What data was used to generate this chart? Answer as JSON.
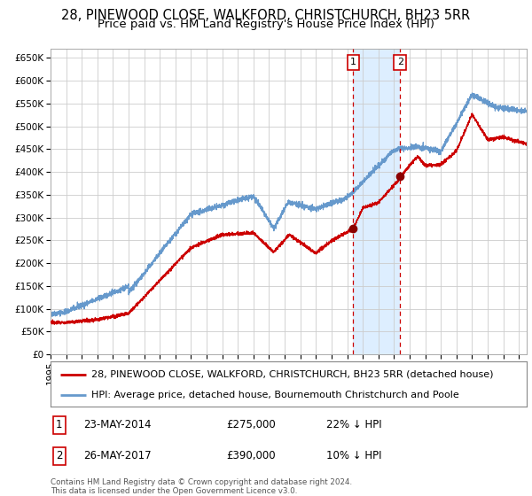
{
  "title": "28, PINEWOOD CLOSE, WALKFORD, CHRISTCHURCH, BH23 5RR",
  "subtitle": "Price paid vs. HM Land Registry's House Price Index (HPI)",
  "xlim": [
    1995.0,
    2025.5
  ],
  "ylim": [
    0,
    670000
  ],
  "yticks": [
    0,
    50000,
    100000,
    150000,
    200000,
    250000,
    300000,
    350000,
    400000,
    450000,
    500000,
    550000,
    600000,
    650000
  ],
  "ytick_labels": [
    "£0",
    "£50K",
    "£100K",
    "£150K",
    "£200K",
    "£250K",
    "£300K",
    "£350K",
    "£400K",
    "£450K",
    "£500K",
    "£550K",
    "£600K",
    "£650K"
  ],
  "xticks": [
    1995,
    1996,
    1997,
    1998,
    1999,
    2000,
    2001,
    2002,
    2003,
    2004,
    2005,
    2006,
    2007,
    2008,
    2009,
    2010,
    2011,
    2012,
    2013,
    2014,
    2015,
    2016,
    2017,
    2018,
    2019,
    2020,
    2021,
    2022,
    2023,
    2024,
    2025
  ],
  "background_color": "#ffffff",
  "plot_bg_color": "#ffffff",
  "grid_color": "#cccccc",
  "hpi_color": "#6699cc",
  "property_color": "#cc0000",
  "highlight_bg": "#ddeeff",
  "sale1_date": 2014.39,
  "sale1_price": 275000,
  "sale1_label": "1",
  "sale2_date": 2017.4,
  "sale2_price": 390000,
  "sale2_label": "2",
  "legend_property": "28, PINEWOOD CLOSE, WALKFORD, CHRISTCHURCH, BH23 5RR (detached house)",
  "legend_hpi": "HPI: Average price, detached house, Bournemouth Christchurch and Poole",
  "table_row1": [
    "1",
    "23-MAY-2014",
    "£275,000",
    "22% ↓ HPI"
  ],
  "table_row2": [
    "2",
    "26-MAY-2017",
    "£390,000",
    "10% ↓ HPI"
  ],
  "footer": "Contains HM Land Registry data © Crown copyright and database right 2024.\nThis data is licensed under the Open Government Licence v3.0.",
  "title_fontsize": 10.5,
  "subtitle_fontsize": 9.5,
  "tick_fontsize": 7.5,
  "legend_fontsize": 8.0,
  "table_fontsize": 8.5
}
